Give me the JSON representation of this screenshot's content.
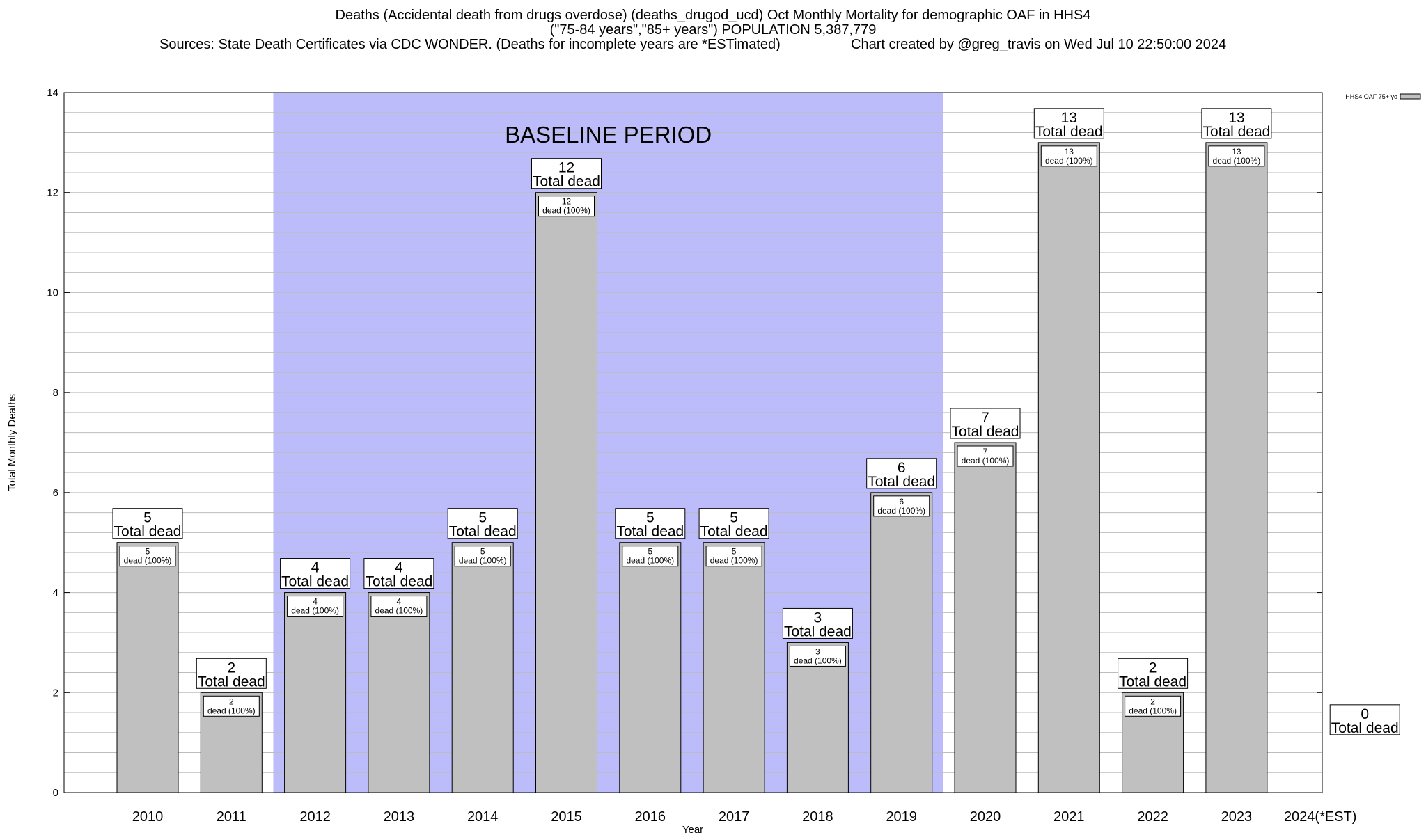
{
  "header": {
    "title_line1": "Deaths (Accidental death from drugs overdose) (deaths_drugod_ucd) Oct Monthly Mortality for demographic OAF in HHS4",
    "title_line2": "(\"75-84 years\",\"85+ years\") POPULATION 5,387,779",
    "sources": "Sources: State Death Certificates via CDC WONDER. (Deaths for incomplete years are *ESTimated)",
    "credit": "Chart created by @greg_travis on Wed Jul 10 22:50:00 2024"
  },
  "chart_data": {
    "type": "bar",
    "title": "Deaths (Accidental death from drugs overdose) (deaths_drugod_ucd) Oct Monthly Mortality for demographic OAF in HHS4",
    "xlabel": "Year",
    "ylabel": "Total Monthly Deaths",
    "ylim": [
      0,
      14
    ],
    "yticks": [
      0,
      2,
      4,
      6,
      8,
      10,
      12,
      14
    ],
    "categories": [
      "2010",
      "2011",
      "2012",
      "2013",
      "2014",
      "2015",
      "2016",
      "2017",
      "2018",
      "2019",
      "2020",
      "2021",
      "2022",
      "2023",
      "2024(*EST)"
    ],
    "series": [
      {
        "name": "HHS4 OAF 75+ yo",
        "values": [
          5,
          2,
          4,
          4,
          5,
          12,
          5,
          5,
          3,
          6,
          7,
          13,
          2,
          13,
          0
        ],
        "color": "#c0c0c0"
      }
    ],
    "total_label_word": "Total dead",
    "inner_label_word": "dead (100%)",
    "baseline": {
      "label": "BASELINE PERIOD",
      "start": "2012",
      "end": "2019",
      "color": "#bcbcfb"
    },
    "legend": {
      "position": "top-right"
    },
    "grid": true
  }
}
